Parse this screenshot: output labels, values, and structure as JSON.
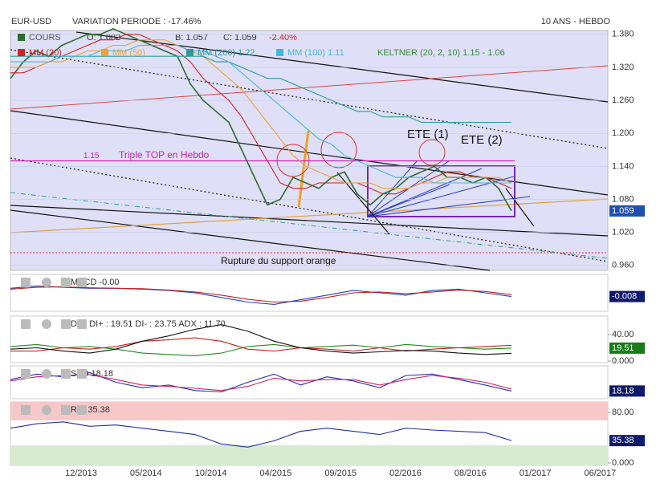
{
  "chart_data": [
    {
      "type": "line",
      "title": "EUR-USD",
      "subtitle": "VARIATION PERIODE : -17.46%",
      "period": "10 ANS - HEBDO",
      "quote": [
        "O: 1.082",
        "B: 1.057",
        "C: 1.059",
        "-2.40%"
      ],
      "keltner": "KELTNER (20, 2, 10)  1.15 - 1.06",
      "series": [
        {
          "name": "COURS",
          "color": "#2e6b2e",
          "values": [
            1.3,
            1.33,
            1.35,
            1.34,
            1.36,
            1.37,
            1.38,
            1.38,
            1.39,
            1.38,
            1.37,
            1.36,
            1.35,
            1.34,
            1.29,
            1.26,
            1.24,
            1.22,
            1.17,
            1.12,
            1.07,
            1.08,
            1.12,
            1.11,
            1.1,
            1.12,
            1.13,
            1.09,
            1.07,
            1.09,
            1.1,
            1.12,
            1.13,
            1.14,
            1.12,
            1.12,
            1.11,
            1.12,
            1.1,
            1.059
          ]
        },
        {
          "name": "MM (20)",
          "color": "#d42020",
          "values": [
            1.31,
            1.31,
            1.32,
            1.33,
            1.34,
            1.35,
            1.36,
            1.37,
            1.37,
            1.38,
            1.38,
            1.37,
            1.36,
            1.35,
            1.33,
            1.3,
            1.28,
            1.26,
            1.23,
            1.19,
            1.15,
            1.11,
            1.1,
            1.1,
            1.11,
            1.11,
            1.11,
            1.11,
            1.1,
            1.09,
            1.09,
            1.1,
            1.11,
            1.12,
            1.13,
            1.13,
            1.12,
            1.12,
            1.11,
            1.1
          ]
        },
        {
          "name": "MM (50)",
          "color": "#f0a030",
          "values": [
            1.32,
            1.32,
            1.32,
            1.33,
            1.33,
            1.34,
            1.35,
            1.35,
            1.36,
            1.36,
            1.37,
            1.37,
            1.37,
            1.36,
            1.35,
            1.34,
            1.32,
            1.3,
            1.28,
            1.25,
            1.22,
            1.19,
            1.16,
            1.14,
            1.13,
            1.12,
            1.11,
            1.11,
            1.11,
            1.1,
            1.1,
            1.1,
            1.11,
            1.11,
            1.12,
            1.12,
            1.12,
            1.12,
            1.12,
            1.11
          ]
        },
        {
          "name": "MM (200)  1.22",
          "color": "#2a9a9a",
          "values": [
            1.34,
            1.34,
            1.34,
            1.34,
            1.34,
            1.34,
            1.34,
            1.34,
            1.34,
            1.34,
            1.34,
            1.34,
            1.34,
            1.34,
            1.34,
            1.34,
            1.33,
            1.33,
            1.32,
            1.31,
            1.3,
            1.3,
            1.29,
            1.28,
            1.27,
            1.26,
            1.25,
            1.24,
            1.24,
            1.23,
            1.23,
            1.23,
            1.22,
            1.22,
            1.22,
            1.22,
            1.22,
            1.22,
            1.22,
            1.22
          ]
        },
        {
          "name": "MM (100)  1.11",
          "color": "#40b8d8",
          "values": [
            1.33,
            1.33,
            1.33,
            1.33,
            1.34,
            1.34,
            1.34,
            1.35,
            1.35,
            1.35,
            1.36,
            1.36,
            1.36,
            1.36,
            1.35,
            1.35,
            1.34,
            1.33,
            1.31,
            1.29,
            1.27,
            1.25,
            1.23,
            1.21,
            1.19,
            1.18,
            1.16,
            1.15,
            1.14,
            1.13,
            1.12,
            1.12,
            1.12,
            1.11,
            1.11,
            1.11,
            1.11,
            1.11,
            1.11,
            1.11
          ]
        }
      ],
      "ylim": [
        0.951,
        1.387
      ],
      "yticks": [
        {
          "value": 1.38,
          "label": "1.380"
        },
        {
          "value": 1.32,
          "label": "1.320"
        },
        {
          "value": 1.26,
          "label": "1.260"
        },
        {
          "value": 1.2,
          "label": "1.200"
        },
        {
          "value": 1.14,
          "label": "1.140"
        },
        {
          "value": 1.08,
          "label": "1.080"
        },
        {
          "value": 1.02,
          "label": "1.020"
        },
        {
          "value": 0.96,
          "label": "0.960"
        }
      ],
      "level": 1.15,
      "annotations": [
        "Triple TOP en Hebdo",
        "ETE (1)",
        "ETE (2)",
        "Rupture du support orange"
      ],
      "date_labels": [
        "12/2013",
        "05/2014",
        "10/2014",
        "04/2015",
        "09/2015",
        "02/2016",
        "08/2016",
        "01/2017",
        "06/2017"
      ]
    },
    {
      "type": "line",
      "title": "MACD -0.00",
      "ylim": [
        -0.04,
        0.04
      ],
      "series": [
        {
          "color": "#2040c0",
          "values": [
            0.01,
            0.015,
            0.012,
            0.01,
            0.01,
            0.008,
            0.005,
            0,
            -0.01,
            -0.02,
            -0.025,
            -0.015,
            -0.005,
            0.005,
            0,
            -0.005,
            0.005,
            0.008,
            0,
            -0.008
          ]
        },
        {
          "color": "#c02020",
          "values": [
            0.008,
            0.012,
            0.013,
            0.011,
            0.01,
            0.009,
            0.006,
            0.002,
            -0.005,
            -0.014,
            -0.02,
            -0.018,
            -0.01,
            0,
            0.002,
            -0.002,
            0.002,
            0.006,
            0.003,
            -0.004
          ]
        }
      ]
    },
    {
      "type": "line",
      "title": "DMI DI+ : 19.51 DI- : 23.75 ADX : 11.70",
      "ylim": [
        -2.4,
        67.9
      ],
      "yticks": [
        {
          "value": 40,
          "label": "40.00"
        },
        {
          "value": 0,
          "label": "0.000"
        }
      ],
      "series": [
        {
          "color": "#1d8a1d",
          "values": [
            22,
            25,
            20,
            22,
            18,
            12,
            10,
            8,
            12,
            22,
            25,
            20,
            22,
            24,
            20,
            25,
            22,
            20,
            18,
            19.51
          ]
        },
        {
          "color": "#c82020",
          "values": [
            15,
            15,
            20,
            18,
            22,
            30,
            32,
            35,
            30,
            18,
            15,
            20,
            18,
            15,
            20,
            15,
            18,
            20,
            22,
            23.75
          ]
        },
        {
          "color": "#111111",
          "values": [
            18,
            20,
            15,
            12,
            18,
            30,
            38,
            48,
            55,
            45,
            30,
            20,
            15,
            12,
            14,
            16,
            15,
            12,
            10,
            11.7
          ]
        }
      ]
    },
    {
      "type": "line",
      "title": "STO 18.18",
      "ylim": [
        -10,
        110
      ],
      "series": [
        {
          "color": "#2030c0",
          "values": [
            60,
            80,
            70,
            85,
            50,
            30,
            40,
            20,
            15,
            50,
            80,
            40,
            70,
            55,
            30,
            75,
            80,
            60,
            40,
            18.18
          ]
        },
        {
          "color": "#d02060",
          "values": [
            55,
            70,
            75,
            78,
            60,
            40,
            35,
            28,
            20,
            35,
            65,
            55,
            60,
            60,
            40,
            60,
            75,
            65,
            50,
            25
          ]
        }
      ]
    },
    {
      "type": "line",
      "title": "RSI 35.38",
      "ylim": [
        -3.8,
        96.5
      ],
      "yticks": [
        {
          "value": 80,
          "label": "80.00"
        },
        {
          "value": 0,
          "label": "0.000"
        }
      ],
      "series": [
        {
          "color": "#2030a0",
          "values": [
            55,
            62,
            65,
            58,
            60,
            55,
            50,
            45,
            30,
            25,
            35,
            50,
            55,
            50,
            45,
            55,
            52,
            50,
            48,
            35.38
          ]
        }
      ]
    }
  ]
}
